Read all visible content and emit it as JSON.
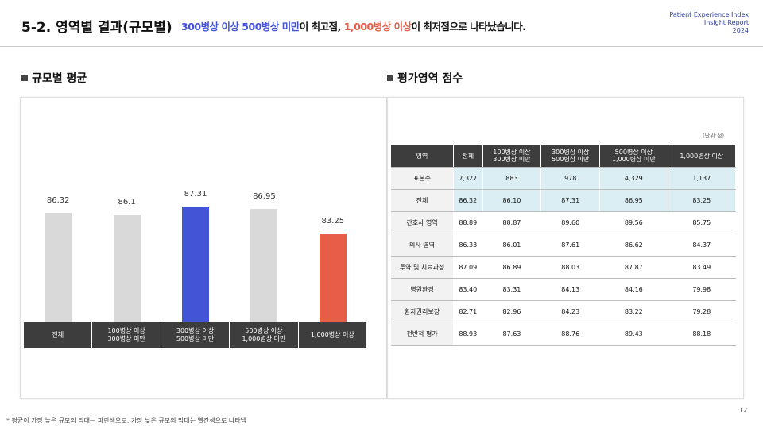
{
  "header": {
    "title": "5-2. 영역별 결과(규모별)",
    "summary": [
      {
        "text": "300병상 이상 500병상 미만",
        "color": "#4355d6"
      },
      {
        "text": "이 최고점, ",
        "color": "#111111"
      },
      {
        "text": "1,000병상 이상",
        "color": "#e85d48"
      },
      {
        "text": "이 최저점으로 나타났습니다.",
        "color": "#111111"
      }
    ],
    "report": [
      "Patient Experience Index",
      "Insight Report",
      "2024"
    ]
  },
  "left_section": "규모별 평균",
  "right_section": "평가영역 점수",
  "chart_data": {
    "type": "bar",
    "categories": [
      "전체",
      "100병상 이상\n300병상 미만",
      "300병상 이상\n500병상 미만",
      "500병상 이상\n1,000병상 미만",
      "1,000병상 이상"
    ],
    "values": [
      86.32,
      86.1,
      87.31,
      86.95,
      83.25
    ],
    "colors": [
      "#d9d9d9",
      "#d9d9d9",
      "#4355d6",
      "#d9d9d9",
      "#e85d48"
    ],
    "ylim": [
      70,
      90
    ]
  },
  "table": {
    "unit": "(단위:점)",
    "columns": [
      "영역",
      "전체",
      "100병상 이상\n300병상 미만",
      "300병상 이상\n500병상 미만",
      "500병상 이상\n1,000병상 미만",
      "1,000병상 이상"
    ],
    "rows": [
      [
        "표본수",
        "7,327",
        "883",
        "978",
        "4,329",
        "1,137"
      ],
      [
        "전체",
        "86.32",
        "86.10",
        "87.31",
        "86.95",
        "83.25"
      ],
      [
        "간호사 영역",
        "88.89",
        "88.87",
        "89.60",
        "89.56",
        "85.75"
      ],
      [
        "의사 영역",
        "86.33",
        "86.01",
        "87.61",
        "86.62",
        "84.37"
      ],
      [
        "투약 및 치료과정",
        "87.09",
        "86.89",
        "88.03",
        "87.87",
        "83.49"
      ],
      [
        "병원환경",
        "83.40",
        "83.31",
        "84.13",
        "84.16",
        "79.98"
      ],
      [
        "환자권리보장",
        "82.71",
        "82.96",
        "84.23",
        "83.22",
        "79.28"
      ],
      [
        "전반적 평가",
        "88.93",
        "87.63",
        "88.76",
        "89.43",
        "88.18"
      ]
    ]
  },
  "footnote": "* 평균이 가장 높은 규모의 막대는 파란색으로, 가장 낮은 규모의 막대는 빨간색으로 나타냄",
  "page_number": "12"
}
